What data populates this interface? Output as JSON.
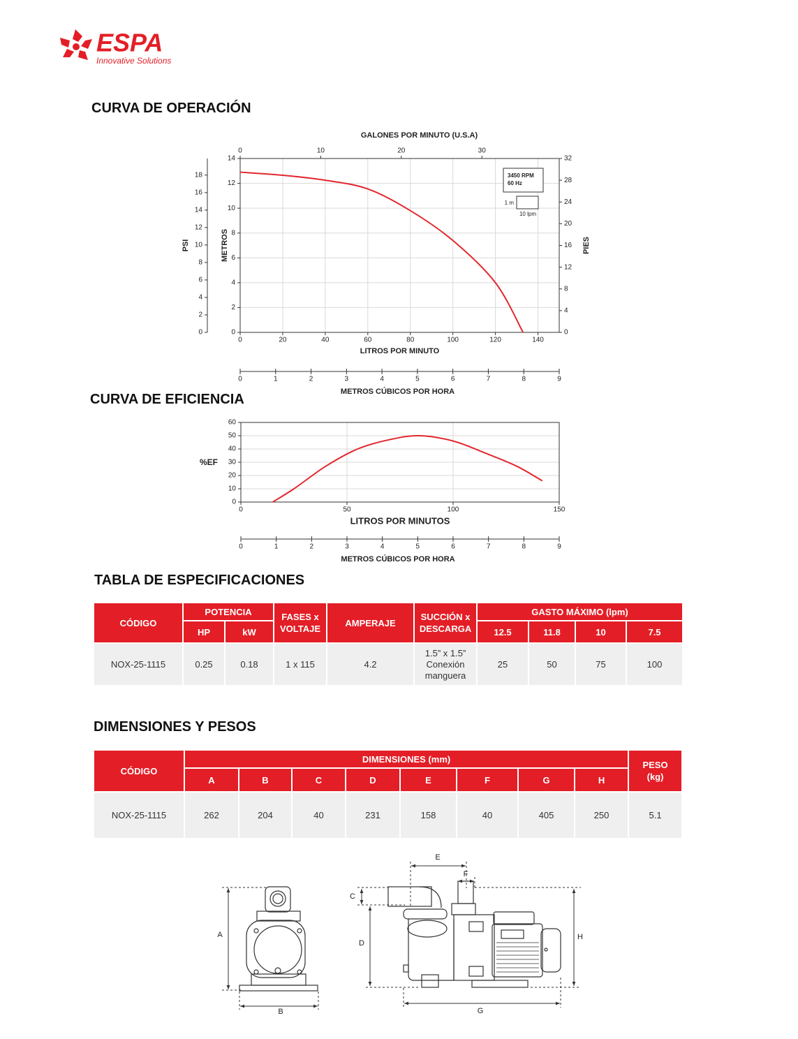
{
  "logo": {
    "brand": "ESPA",
    "tagline": "Innovative Solutions"
  },
  "sections": {
    "operation": "CURVA DE OPERACIÓN",
    "efficiency": "CURVA DE EFICIENCIA",
    "specs": "TABLA DE ESPECIFICACIONES",
    "dimensions": "DIMENSIONES Y PESOS"
  },
  "chart_data": [
    {
      "type": "line",
      "xlabel": "LITROS POR MINUTO",
      "ylabel": "METROS",
      "x": [
        0,
        20,
        40,
        60,
        80,
        100,
        120,
        133
      ],
      "values": [
        12.9,
        12.65,
        12.25,
        11.55,
        9.8,
        7.4,
        4.0,
        0
      ],
      "color": "#e2272d",
      "xlim": [
        0,
        150
      ],
      "xticks": [
        0,
        20,
        40,
        60,
        80,
        100,
        120,
        140
      ],
      "ylim": [
        0,
        14
      ],
      "yticks": [
        0,
        2,
        4,
        6,
        8,
        10,
        12,
        14
      ],
      "y2label": "PIES",
      "y2lim": [
        0,
        32
      ],
      "y2ticks": [
        0,
        4,
        8,
        12,
        16,
        20,
        24,
        28,
        32
      ],
      "top_axis": {
        "label": "GALONES POR MINUTO (U.S.A)",
        "lim": [
          0,
          39.6
        ],
        "ticks": [
          0,
          10,
          20,
          30
        ]
      },
      "left_axis": {
        "label": "PSI",
        "lim": [
          0,
          19.9
        ],
        "ticks": [
          0,
          2,
          4,
          6,
          8,
          10,
          12,
          14,
          16,
          18
        ]
      },
      "bottom_axis": {
        "label": "METROS CÚBICOS POR HORA",
        "lim": [
          0,
          9
        ],
        "ticks": [
          0,
          1,
          2,
          3,
          4,
          5,
          6,
          7,
          8,
          9
        ]
      },
      "annotations": [
        "3450 RPM",
        "60 Hz"
      ],
      "scale_box": {
        "height": "1 m",
        "width": "10 lpm"
      },
      "grid": true
    },
    {
      "type": "line",
      "xlabel": "LITROS POR MINUTOS",
      "ylabel": "%EF",
      "x": [
        15,
        25,
        40,
        55,
        70,
        84,
        100,
        115,
        130,
        142
      ],
      "values": [
        0,
        10,
        27,
        40,
        47,
        50,
        46,
        37,
        27,
        16
      ],
      "color": "#e2272d",
      "xlim": [
        0,
        150
      ],
      "xticks": [
        0,
        50,
        100,
        150
      ],
      "ylim": [
        0,
        60
      ],
      "yticks": [
        0,
        10,
        20,
        30,
        40,
        50,
        60
      ],
      "bottom_axis": {
        "label": "METROS CÚBICOS POR HORA",
        "lim": [
          0,
          9
        ],
        "ticks": [
          0,
          1,
          2,
          3,
          4,
          5,
          6,
          7,
          8,
          9
        ]
      },
      "grid": true
    }
  ],
  "spec_table": {
    "headers": {
      "code": "CÓDIGO",
      "power": "POTENCIA",
      "hp": "HP",
      "kw": "kW",
      "phases": "FASES x VOLTAJE",
      "amperage": "AMPERAJE",
      "ports": "SUCCIÓN x DESCARGA",
      "flow": "GASTO MÁXIMO (lpm)",
      "heads": [
        12.5,
        11.8,
        10,
        7.5
      ]
    },
    "rows": [
      [
        "NOX-25-1115",
        0.25,
        0.18,
        "1 x 115",
        4.2,
        "1.5” x 1.5” Conexión manguera",
        25,
        50,
        75,
        100
      ]
    ]
  },
  "dim_table": {
    "headers": {
      "code": "CÓDIGO",
      "dimensions": "DIMENSIONES (mm)",
      "weight": "PESO (kg)",
      "letters": [
        "A",
        "B",
        "C",
        "D",
        "E",
        "F",
        "G",
        "H"
      ]
    },
    "rows": [
      [
        "NOX-25-1115",
        262,
        204,
        40,
        231,
        158,
        40,
        405,
        250,
        5.1
      ]
    ]
  }
}
